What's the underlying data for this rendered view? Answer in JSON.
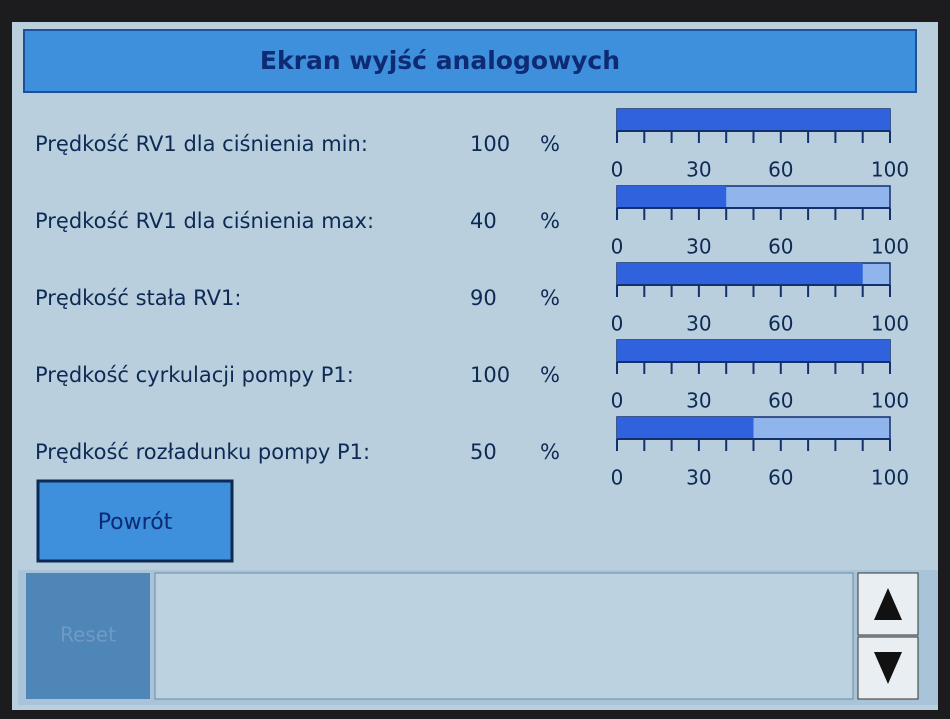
{
  "header": {
    "title": "Ekran wyjść analogowych"
  },
  "scale": {
    "lim": [
      0,
      100
    ],
    "ticks": [
      0,
      30,
      60,
      100
    ],
    "minor_ticks": [
      0,
      10,
      20,
      30,
      40,
      50,
      60,
      70,
      80,
      90,
      100
    ]
  },
  "unit": "%",
  "rows": [
    {
      "label": "Prędkość RV1 dla ciśnienia min:",
      "value": 100
    },
    {
      "label": "Prędkość RV1 dla ciśnienia max:",
      "value": 40
    },
    {
      "label": "Prędkość stała RV1:",
      "value": 90
    },
    {
      "label": "Prędkość cyrkulacji pompy P1:",
      "value": 100
    },
    {
      "label": "Prędkość rozładunku pompy P1:",
      "value": 50
    }
  ],
  "buttons": {
    "back": "Powrót",
    "reset": "Reset"
  }
}
